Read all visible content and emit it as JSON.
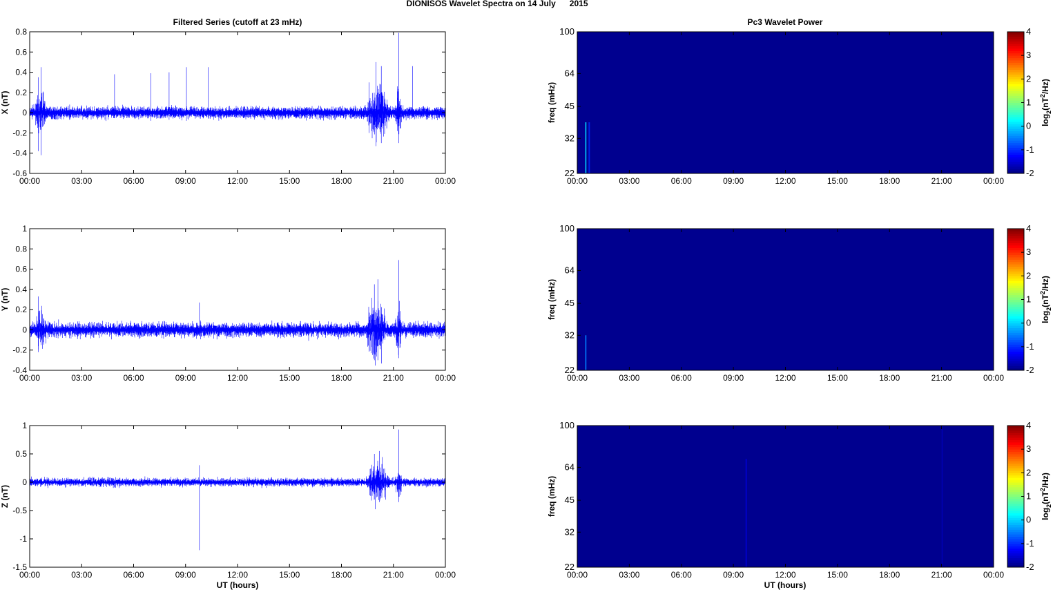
{
  "suptitle": "DIONISOS Wavelet Spectra on 14 July      2015",
  "left_title": "Filtered Series (cutoff at 23 mHz)",
  "right_title": "Pc3 Wavelet Power",
  "xlabel": "UT (hours)",
  "colors": {
    "trace": "#0000ff",
    "spectrogram_bg": "#00008f"
  },
  "chart_data": [
    {
      "type": "line",
      "ylabel": "X (nT)",
      "ylim": [
        -0.6,
        0.8
      ],
      "yticks": [
        "-0.6",
        "-0.4",
        "-0.2",
        "0",
        "0.2",
        "0.4",
        "0.6",
        "0.8"
      ],
      "xticks": [
        "00:00",
        "03:00",
        "06:00",
        "09:00",
        "12:00",
        "15:00",
        "18:00",
        "21:00",
        "00:00"
      ],
      "xlim_hours": [
        0,
        24
      ],
      "noise_amplitude": 0.04,
      "spikes": [
        [
          0.5,
          0.35,
          -0.38
        ],
        [
          0.65,
          0.45,
          -0.42
        ],
        [
          4.9,
          0.38,
          -0.05
        ],
        [
          7.0,
          0.39,
          -0.08
        ],
        [
          8.05,
          0.4,
          -0.07
        ],
        [
          9.05,
          0.45,
          -0.08
        ],
        [
          10.3,
          0.45,
          -0.06
        ],
        [
          19.6,
          0.3,
          -0.2
        ],
        [
          20.0,
          0.5,
          -0.33
        ],
        [
          20.3,
          0.46,
          -0.3
        ],
        [
          21.3,
          0.79,
          -0.3
        ],
        [
          22.1,
          0.46,
          -0.05
        ]
      ],
      "bursts": [
        [
          19.4,
          20.8,
          0.2
        ],
        [
          21.1,
          21.5,
          0.15
        ],
        [
          0.3,
          1.0,
          0.1
        ]
      ]
    },
    {
      "type": "line",
      "ylabel": "Y (nT)",
      "ylim": [
        -0.4,
        1
      ],
      "yticks": [
        "-0.4",
        "-0.2",
        "0",
        "0.2",
        "0.4",
        "0.6",
        "0.8",
        "1"
      ],
      "xticks": [
        "00:00",
        "03:00",
        "06:00",
        "09:00",
        "12:00",
        "15:00",
        "18:00",
        "21:00",
        "00:00"
      ],
      "xlim_hours": [
        0,
        24
      ],
      "noise_amplitude": 0.05,
      "spikes": [
        [
          0.5,
          0.33,
          -0.22
        ],
        [
          9.8,
          0.27,
          -0.05
        ],
        [
          19.9,
          0.45,
          -0.3
        ],
        [
          20.1,
          0.5,
          -0.3
        ],
        [
          21.3,
          0.69,
          -0.28
        ]
      ],
      "bursts": [
        [
          19.4,
          20.6,
          0.2
        ],
        [
          21.1,
          21.5,
          0.15
        ],
        [
          0.3,
          1.0,
          0.1
        ]
      ]
    },
    {
      "type": "line",
      "ylabel": "Z (nT)",
      "ylim": [
        -1.5,
        1
      ],
      "yticks": [
        "-1.5",
        "-1",
        "-0.5",
        "0",
        "0.5",
        "1"
      ],
      "xticks": [
        "00:00",
        "03:00",
        "06:00",
        "09:00",
        "12:00",
        "15:00",
        "18:00",
        "21:00",
        "00:00"
      ],
      "xlim_hours": [
        0,
        24
      ],
      "noise_amplitude": 0.05,
      "spikes": [
        [
          9.8,
          0.3,
          -1.2
        ],
        [
          19.9,
          0.5,
          -0.3
        ],
        [
          20.2,
          0.55,
          -0.35
        ],
        [
          21.3,
          0.93,
          -0.35
        ]
      ],
      "bursts": [
        [
          19.4,
          20.8,
          0.25
        ],
        [
          21.1,
          21.5,
          0.2
        ]
      ]
    },
    {
      "type": "heatmap",
      "ylabel": "freq (mHz)",
      "yscale": "log",
      "ylim": [
        22,
        100
      ],
      "yticks": [
        "22",
        "32",
        "45",
        "64",
        "100"
      ],
      "xticks": [
        "00:00",
        "03:00",
        "06:00",
        "09:00",
        "12:00",
        "15:00",
        "18:00",
        "21:00",
        "00:00"
      ],
      "clim": [
        -2,
        4
      ],
      "cticks": [
        "-2",
        "-1",
        "0",
        "1",
        "2",
        "3",
        "4"
      ],
      "clabel": "log2(nT2/Hz)",
      "features": [
        {
          "hour": 0.45,
          "fmax": 38,
          "level": 0.0
        },
        {
          "hour": 0.65,
          "fmax": 38,
          "level": -1.0
        }
      ]
    },
    {
      "type": "heatmap",
      "ylabel": "freq (mHz)",
      "yscale": "log",
      "ylim": [
        22,
        100
      ],
      "yticks": [
        "22",
        "32",
        "45",
        "64",
        "100"
      ],
      "xticks": [
        "00:00",
        "03:00",
        "06:00",
        "09:00",
        "12:00",
        "15:00",
        "18:00",
        "21:00",
        "00:00"
      ],
      "clim": [
        -2,
        4
      ],
      "cticks": [
        "-2",
        "-1",
        "0",
        "1",
        "2",
        "3",
        "4"
      ],
      "clabel": "log2(nT2/Hz)",
      "features": [
        {
          "hour": 0.45,
          "fmax": 32,
          "level": -0.5
        }
      ]
    },
    {
      "type": "heatmap",
      "ylabel": "freq (mHz)",
      "yscale": "log",
      "ylim": [
        22,
        100
      ],
      "yticks": [
        "22",
        "32",
        "45",
        "64",
        "100"
      ],
      "xticks": [
        "00:00",
        "03:00",
        "06:00",
        "09:00",
        "12:00",
        "15:00",
        "18:00",
        "21:00",
        "00:00"
      ],
      "clim": [
        -2,
        4
      ],
      "cticks": [
        "-2",
        "-1",
        "0",
        "1",
        "2",
        "3",
        "4"
      ],
      "clabel": "log2(nT2/Hz)",
      "features": [
        {
          "hour": 9.7,
          "fmax": 70,
          "level": -1.5
        },
        {
          "hour": 21.0,
          "fmax": 100,
          "level": -1.7
        }
      ]
    }
  ]
}
